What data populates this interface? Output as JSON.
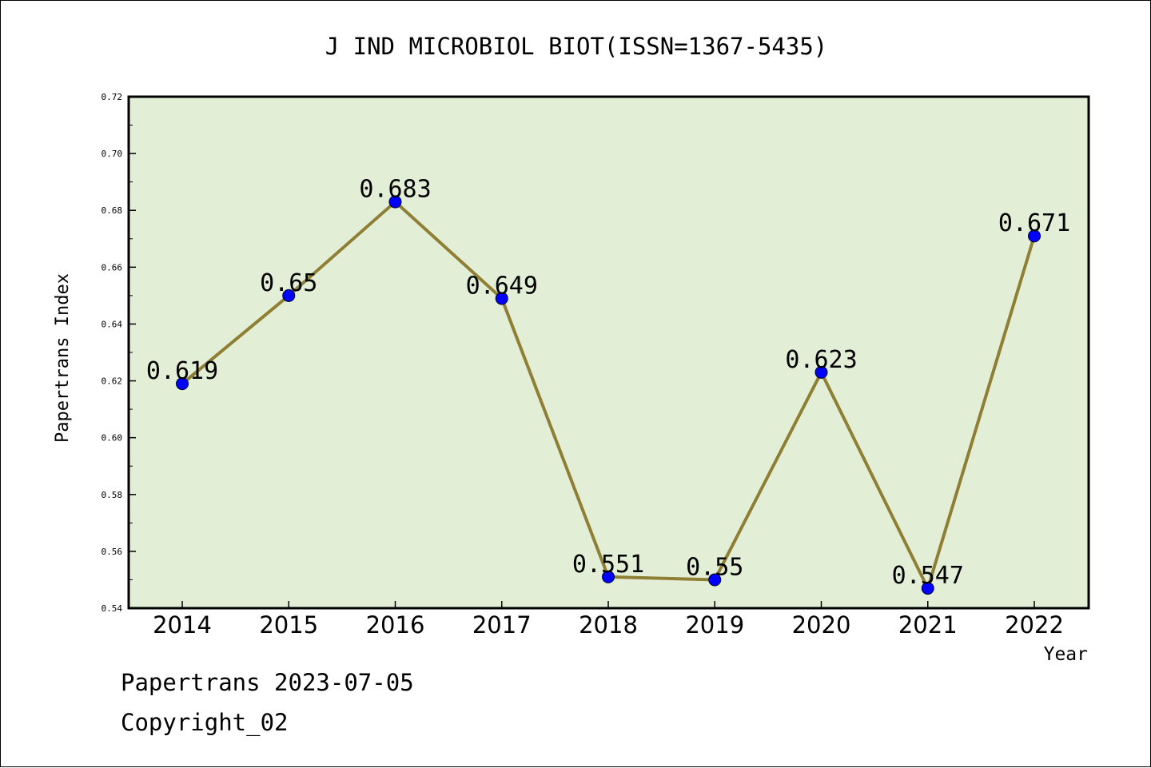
{
  "chart_data": {
    "type": "line",
    "title": "J IND MICROBIOL BIOT(ISSN=1367-5435)",
    "xlabel": "Year",
    "ylabel": "Papertrans Index",
    "categories": [
      "2014",
      "2015",
      "2016",
      "2017",
      "2018",
      "2019",
      "2020",
      "2021",
      "2022"
    ],
    "series": [
      {
        "values": [
          0.619,
          0.65,
          0.683,
          0.649,
          0.551,
          0.55,
          0.623,
          0.547,
          0.671
        ]
      }
    ],
    "data_labels": [
      "0.619",
      "0.65",
      "0.683",
      "0.649",
      "0.551",
      "0.55",
      "0.623",
      "0.547",
      "0.671"
    ],
    "ylim": [
      0.54,
      0.72
    ],
    "yticks": [
      "0.54",
      "0.56",
      "0.58",
      "0.60",
      "0.62",
      "0.64",
      "0.66",
      "0.68",
      "0.70",
      "0.72"
    ],
    "grid": false,
    "colors": {
      "plot_background": "#e2efd6",
      "line": "#8f7f34",
      "marker": "#0000ff"
    }
  },
  "footer": {
    "date_text": "Papertrans 2023-07-05",
    "copyright_text": "Copyright_02"
  }
}
